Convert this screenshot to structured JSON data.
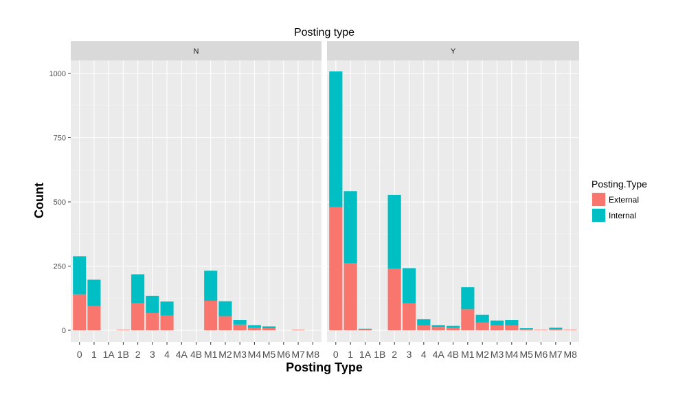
{
  "chart_data": {
    "type": "bar",
    "stacked": true,
    "title": "Posting type",
    "xlabel": "Posting Type",
    "ylabel": "Count",
    "ylim": [
      0,
      1100
    ],
    "y_ticks": [
      0,
      250,
      500,
      750,
      1000
    ],
    "grid": true,
    "legend": {
      "title": "Posting.Type",
      "placement": "right",
      "entries": [
        {
          "name": "External",
          "color": "#F8766D"
        },
        {
          "name": "Internal",
          "color": "#00BFC4"
        }
      ]
    },
    "facets": [
      {
        "label": "N",
        "x_tick_labels": [
          "0",
          "1",
          "1A",
          "1B",
          "2",
          "3",
          "4",
          "4A",
          "4B",
          "M1",
          "M2",
          "M3",
          "M4",
          "M5",
          "M6",
          "M7",
          "M8"
        ],
        "categories": [
          "0",
          "1",
          "1A",
          "1B",
          "2",
          "3",
          "4",
          "4A",
          "4B",
          "M1",
          "M2",
          "M3",
          "M4",
          "M5",
          "M6",
          "M7",
          "M8"
        ],
        "series": [
          {
            "name": "External",
            "values": [
              140,
              95,
              0,
              2,
              105,
              67,
              57,
              0,
              0,
              115,
              55,
              22,
              10,
              8,
              0,
              2,
              0
            ]
          },
          {
            "name": "Internal",
            "values": [
              148,
              102,
              0,
              0,
              113,
              67,
              55,
              0,
              0,
              117,
              58,
              18,
              10,
              7,
              0,
              0,
              0
            ]
          }
        ]
      },
      {
        "label": "Y",
        "x_tick_labels": [
          "0",
          "1",
          "1A",
          "1B",
          "2",
          "3",
          "4",
          "4A",
          "4B",
          "M1",
          "M2",
          "M3",
          "M4",
          "M5",
          "M6",
          "M7",
          "M8"
        ],
        "categories": [
          "0",
          "1",
          "1A",
          "1B",
          "2",
          "3",
          "4",
          "4A",
          "4B",
          "M1",
          "M2",
          "M3",
          "M4",
          "M5",
          "M6",
          "M7",
          "M8"
        ],
        "series": [
          {
            "name": "External",
            "values": [
              480,
              262,
              3,
              0,
              240,
              105,
              20,
              13,
              10,
              82,
              30,
              20,
              20,
              5,
              2,
              5,
              2
            ]
          },
          {
            "name": "Internal",
            "values": [
              528,
              280,
              3,
              0,
              287,
              137,
              23,
              7,
              7,
              86,
              30,
              18,
              20,
              3,
              0,
              5,
              0
            ]
          }
        ]
      }
    ]
  }
}
